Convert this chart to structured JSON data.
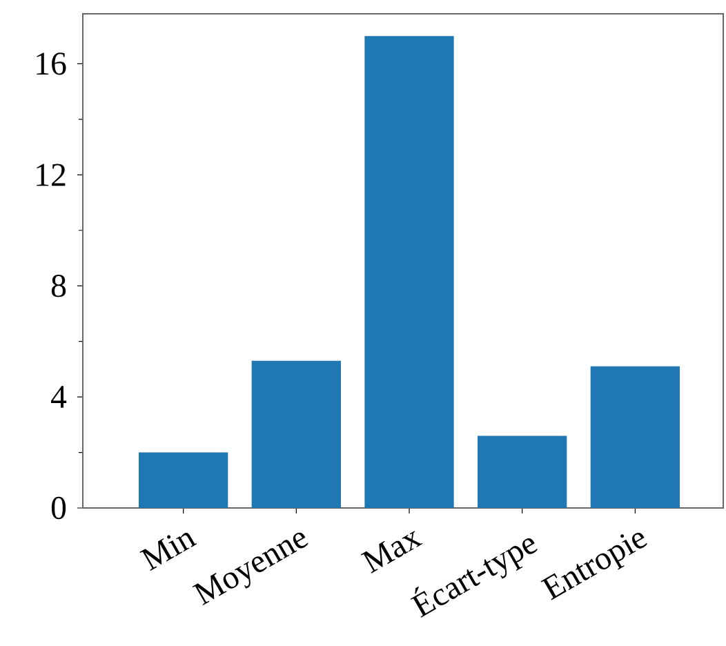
{
  "chart_data": {
    "type": "bar",
    "categories": [
      "Min",
      "Moyenne",
      "Max",
      "Écart-type",
      "Entropie"
    ],
    "values": [
      2,
      5.3,
      17,
      2.6,
      5.1
    ],
    "color": "#1f77b4",
    "ylim": [
      0,
      17.8
    ],
    "yticks": [
      0,
      {
        "value": 2,
        "label": null
      },
      4,
      {
        "value": 6,
        "label": null
      },
      8,
      {
        "value": 10,
        "label": null
      },
      12,
      {
        "value": 14,
        "label": null
      },
      16
    ],
    "grid": false
  }
}
